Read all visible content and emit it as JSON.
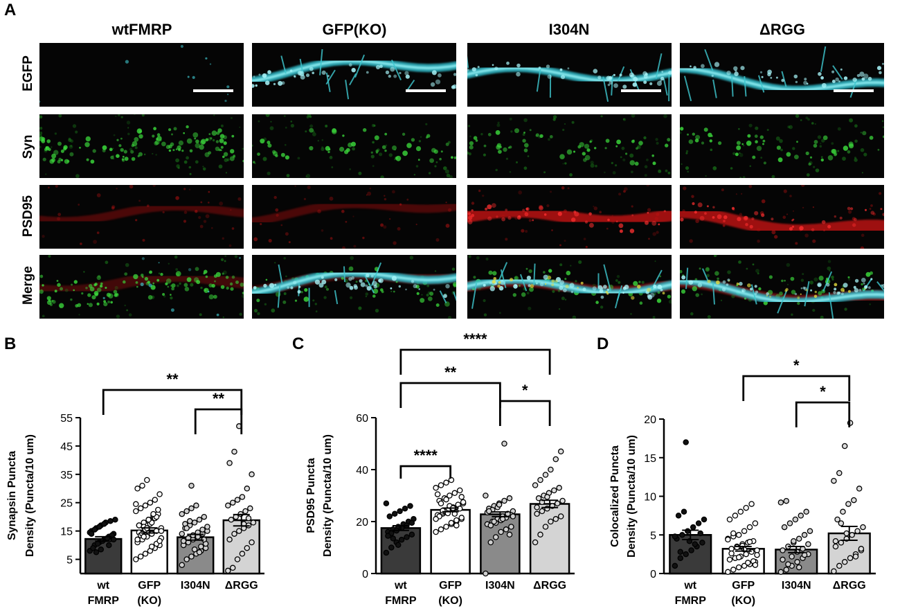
{
  "panel_labels": {
    "a": "A",
    "b": "B",
    "c": "C",
    "d": "D"
  },
  "columns": [
    "wtFMRP",
    "GFP(KO)",
    "I304N",
    "ΔRGG"
  ],
  "rows": [
    {
      "label": "EGFP",
      "color": "#4aa3e8"
    },
    {
      "label": "Syn",
      "color": "#18b418"
    },
    {
      "label": "PSD95",
      "color": "#ee1c1c"
    },
    {
      "label": "Merge",
      "color": "#000000"
    }
  ],
  "categories": [
    [
      "wt",
      "FMRP"
    ],
    [
      "GFP",
      "(KO)"
    ],
    [
      "I304N"
    ],
    [
      "ΔRGG"
    ]
  ],
  "bar_colors": [
    "#3a3a3a",
    "#ffffff",
    "#8a8a8a",
    "#d4d4d4"
  ],
  "chart_data": [
    {
      "type": "bar",
      "panel": "B",
      "ylabel_lines": [
        "Synapsin Puncta",
        "Density (Puncta/10 um)"
      ],
      "ylim": [
        0,
        55
      ],
      "yticks": [
        5,
        15,
        25,
        35,
        45,
        55
      ],
      "categories": [
        "wt FMRP",
        "GFP (KO)",
        "I304N",
        "ΔRGG"
      ],
      "values": [
        12.2,
        15.2,
        12.8,
        18.8
      ],
      "errors": [
        0.8,
        0.9,
        1.0,
        2.0
      ],
      "points": [
        [
          8,
          10,
          11,
          12,
          13,
          14,
          15,
          16,
          17,
          18,
          18.5,
          19,
          9,
          10.5,
          11.5,
          12.5,
          13.5,
          14.5,
          15.5,
          16.5,
          17.5,
          10,
          12,
          14,
          7.5,
          8.5
        ],
        [
          5,
          6,
          7,
          8,
          9,
          10,
          11,
          12,
          13,
          14,
          15,
          16,
          17,
          18,
          19,
          20,
          21,
          22,
          23,
          24,
          25,
          26,
          28,
          30,
          31,
          33,
          9.5,
          10.5,
          12.5,
          14.5,
          16.5,
          18.5,
          20.5,
          22.5,
          24.5,
          13.5,
          15.5,
          17.5,
          19.5,
          11.5,
          12,
          14,
          16,
          18,
          20,
          15,
          17,
          13,
          19,
          21
        ],
        [
          3,
          5,
          6,
          7,
          8,
          9,
          10,
          11,
          12,
          13,
          14,
          15,
          16,
          17,
          18,
          19,
          20,
          21,
          22,
          23,
          24,
          9.5,
          10.5,
          11.5,
          12.5,
          13.5,
          14.5,
          15.5,
          16.5,
          17.5,
          18.5,
          8.5,
          7.5,
          12,
          14,
          16,
          31
        ],
        [
          1,
          2,
          5,
          7,
          9,
          11,
          12,
          14,
          15,
          16,
          17,
          18,
          19,
          20,
          21,
          22,
          23,
          24,
          25,
          26,
          27,
          30,
          35,
          39,
          43,
          52,
          17.5,
          19.5
        ]
      ],
      "brackets": [
        {
          "from": 0,
          "to": 3,
          "label": "**"
        },
        {
          "from": 2,
          "to": 3,
          "label": "**"
        }
      ]
    },
    {
      "type": "bar",
      "panel": "C",
      "ylabel_lines": [
        "PSD95 Puncta",
        "Density (Puncta/10 um)"
      ],
      "ylim": [
        0,
        60
      ],
      "yticks": [
        0,
        20,
        40,
        60
      ],
      "categories": [
        "wt FMRP",
        "GFP (KO)",
        "I304N",
        "ΔRGG"
      ],
      "values": [
        17.5,
        24.5,
        22.8,
        26.8
      ],
      "errors": [
        0.9,
        0.7,
        0.9,
        1.4
      ],
      "points": [
        [
          8,
          10,
          12,
          13,
          14,
          15,
          16,
          17,
          18,
          19,
          20,
          21,
          22,
          23,
          24,
          25,
          26,
          27,
          15.5,
          16.5,
          17.5,
          18.5,
          19.5,
          14.5,
          13.5,
          11
        ],
        [
          16,
          17,
          18,
          19,
          20,
          21,
          22,
          23,
          24,
          25,
          26,
          27,
          28,
          29,
          30,
          31,
          32,
          33,
          34,
          35,
          36,
          20.5,
          21.5,
          22.5,
          23.5,
          24.5,
          25.5,
          26.5,
          27.5,
          22,
          24,
          26,
          23,
          25,
          21,
          27,
          28.5,
          19.5,
          18.5,
          29.5,
          30.5,
          24.2,
          23.2,
          25.2
        ],
        [
          0,
          12,
          14,
          16,
          17,
          18,
          19,
          20,
          21,
          22,
          23,
          24,
          25,
          26,
          27,
          28,
          29,
          30,
          18.5,
          19.5,
          20.5,
          21.5,
          22.5,
          23.5,
          24.5,
          25.5,
          21,
          23,
          22,
          24,
          20,
          26.5,
          50,
          15
        ],
        [
          12,
          15,
          18,
          20,
          21,
          22,
          23,
          24,
          25,
          26,
          27,
          28,
          29,
          30,
          31,
          32,
          33,
          34,
          36,
          38,
          40,
          44,
          47,
          25.5,
          27.5,
          29.5
        ]
      ],
      "brackets": [
        {
          "from": 0,
          "to": 3,
          "label": "****"
        },
        {
          "from": 0,
          "to": 2,
          "label": "**"
        },
        {
          "from": 2,
          "to": 3,
          "label": "*"
        },
        {
          "from": 0,
          "to": 1,
          "label": "****"
        }
      ]
    },
    {
      "type": "bar",
      "panel": "D",
      "ylabel_lines": [
        "Colocalized Puncta",
        "Density (Puncta/10 um)"
      ],
      "ylim": [
        0,
        20
      ],
      "yticks": [
        0,
        5,
        10,
        15,
        20
      ],
      "categories": [
        "wt FMRP",
        "GFP (KO)",
        "I304N",
        "ΔRGG"
      ],
      "values": [
        5.0,
        3.2,
        3.1,
        5.2
      ],
      "errors": [
        0.6,
        0.3,
        0.4,
        0.9
      ],
      "points": [
        [
          1,
          2,
          2.5,
          3,
          3.5,
          4,
          4.5,
          5,
          5.5,
          6,
          6.5,
          7,
          7.5,
          8,
          4.2,
          3.8,
          5.2,
          4.8,
          2.8,
          17
        ],
        [
          0.2,
          0.5,
          0.8,
          1,
          1.2,
          1.5,
          1.8,
          2,
          2.2,
          2.5,
          2.8,
          3,
          3.2,
          3.5,
          3.8,
          4,
          4.2,
          4.5,
          4.8,
          5,
          5.5,
          6,
          6.5,
          7,
          7.5,
          8,
          8.5,
          9,
          2.4,
          2.6,
          3.4,
          3.6,
          1.4,
          1.6,
          4.4,
          5.2,
          2.1,
          3.1,
          4.1,
          1.1
        ],
        [
          0.2,
          0.5,
          1,
          1.5,
          2,
          2.5,
          3,
          3.5,
          4,
          4.5,
          5,
          5.5,
          6,
          6.5,
          7,
          7.5,
          8,
          9.2,
          9.4,
          2.2,
          2.8,
          3.2,
          3.8,
          1.8,
          1.2,
          4.2,
          0.8,
          2.4
        ],
        [
          0.3,
          1,
          1.5,
          2,
          2.5,
          3,
          3.5,
          4,
          4.5,
          5,
          5.5,
          6,
          7,
          8,
          9,
          9.5,
          11,
          12,
          13,
          16.5,
          19.5,
          2.2,
          3.2,
          4.2,
          6.5,
          5.2
        ]
      ],
      "brackets": [
        {
          "from": 1,
          "to": 3,
          "label": "*"
        },
        {
          "from": 2,
          "to": 3,
          "label": "*"
        }
      ]
    }
  ]
}
